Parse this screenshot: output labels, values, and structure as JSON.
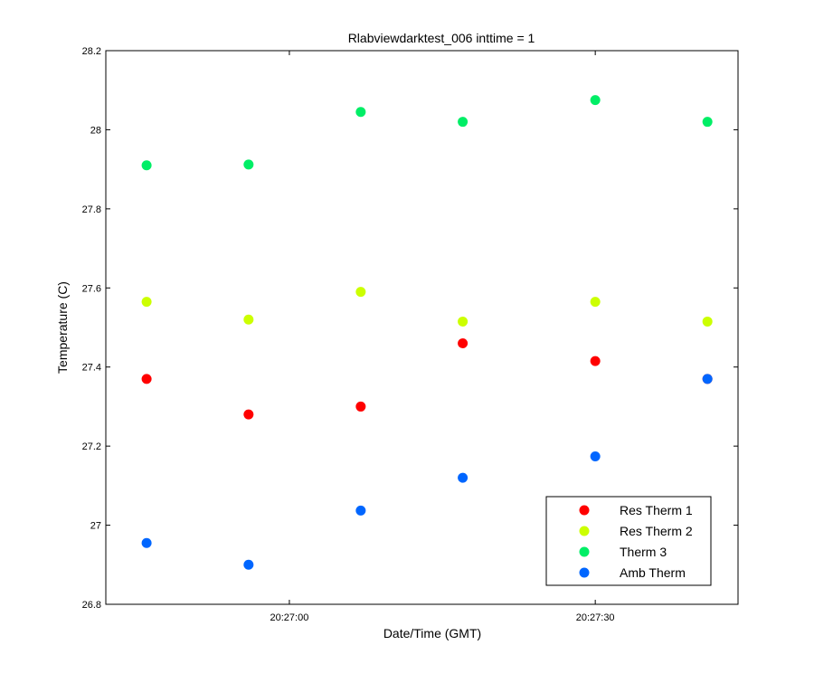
{
  "chart_data": {
    "type": "scatter",
    "title": "Rlabviewdarktest_006 inttime = 1",
    "xlabel": "Date/Time (GMT)",
    "ylabel": "Temperature (C)",
    "ylim": [
      26.8,
      28.2
    ],
    "xlim": [
      "20:26:42",
      "20:27:44"
    ],
    "yticks": [
      "26.8",
      "27",
      "27.2",
      "27.4",
      "27.6",
      "27.8",
      "28",
      "28.2"
    ],
    "xticks": [
      "20:27:00",
      "20:27:30"
    ],
    "x": [
      "20:26:46",
      "20:26:56",
      "20:27:07",
      "20:27:17",
      "20:27:30",
      "20:27:41"
    ],
    "grid": false,
    "legend_position": "bottom-right",
    "series": [
      {
        "name": "Res Therm 1",
        "color": "#ff0000",
        "values": [
          27.37,
          27.28,
          27.3,
          27.46,
          27.415,
          27.37
        ]
      },
      {
        "name": "Res Therm 2",
        "color": "#ccff00",
        "values": [
          27.565,
          27.52,
          27.59,
          27.515,
          27.565,
          27.515
        ]
      },
      {
        "name": "Therm 3",
        "color": "#00ee66",
        "values": [
          27.91,
          27.912,
          28.045,
          28.02,
          28.075,
          28.02
        ]
      },
      {
        "name": "Amb Therm",
        "color": "#0066ff",
        "values": [
          26.955,
          26.9,
          27.037,
          27.12,
          27.174,
          27.37
        ]
      }
    ]
  }
}
